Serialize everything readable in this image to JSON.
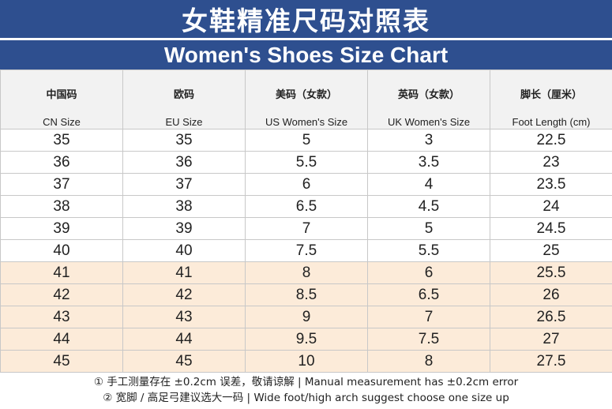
{
  "title_cn": "女鞋精准尺码对照表",
  "title_en": "Women's Shoes Size Chart",
  "columns": [
    {
      "cn": "中国码",
      "en": "CN Size"
    },
    {
      "cn": "欧码",
      "en": "EU Size"
    },
    {
      "cn": "美码（女款）",
      "en": "US Women's Size"
    },
    {
      "cn": "英码（女款）",
      "en": "UK Women's Size"
    },
    {
      "cn": "脚长（厘米）",
      "en": "Foot Length (cm)"
    }
  ],
  "rows": [
    [
      "35",
      "35",
      "5",
      "3",
      "22.5"
    ],
    [
      "36",
      "36",
      "5.5",
      "3.5",
      "23"
    ],
    [
      "37",
      "37",
      "6",
      "4",
      "23.5"
    ],
    [
      "38",
      "38",
      "6.5",
      "4.5",
      "24"
    ],
    [
      "39",
      "39",
      "7",
      "5",
      "24.5"
    ],
    [
      "40",
      "40",
      "7.5",
      "5.5",
      "25"
    ],
    [
      "41",
      "41",
      "8",
      "6",
      "25.5"
    ],
    [
      "42",
      "42",
      "8.5",
      "6.5",
      "26"
    ],
    [
      "43",
      "43",
      "9",
      "7",
      "26.5"
    ],
    [
      "44",
      "44",
      "9.5",
      "7.5",
      "27"
    ],
    [
      "45",
      "45",
      "10",
      "8",
      "27.5"
    ]
  ],
  "highlight_from_row": 6,
  "notes": [
    "① 手工测量存在 ±0.2cm 误差，敬请谅解 | Manual measurement has ±0.2cm error",
    "② 宽脚 / 高足弓建议选大一码 | Wide foot/high arch suggest choose one size up"
  ],
  "colors": {
    "header_bg": "#2e4f8f",
    "header_row_bg": "#f2f2f2",
    "highlight_bg": "#fcebd9"
  }
}
